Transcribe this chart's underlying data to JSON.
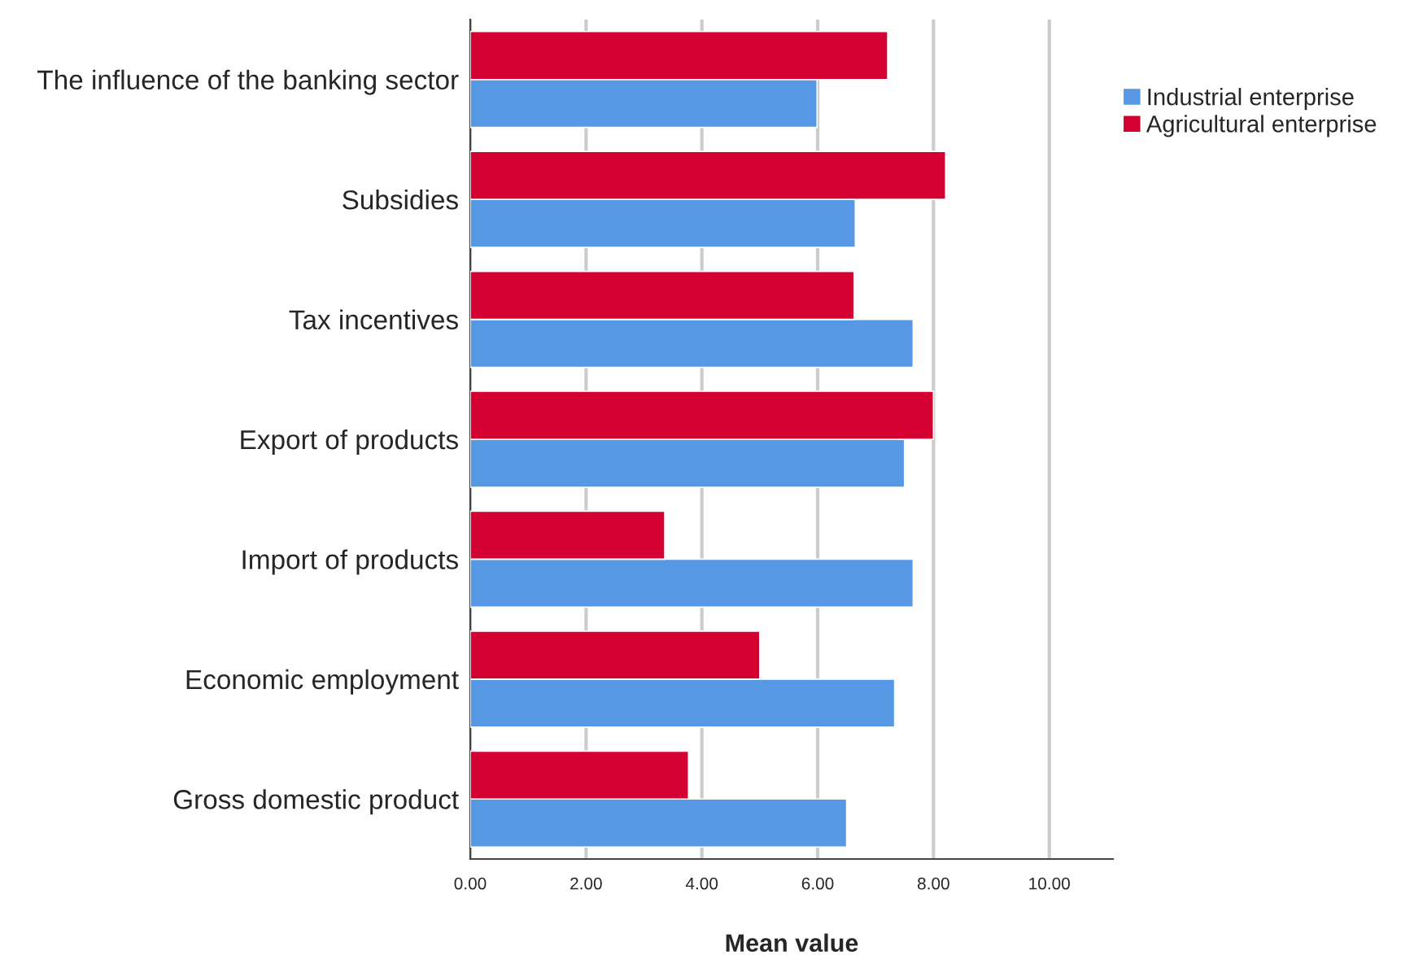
{
  "chart_data": {
    "type": "bar",
    "orientation": "horizontal",
    "xlabel": "Mean value",
    "categories": [
      "The influence of the banking sector",
      "Subsidies",
      "Tax incentives",
      "Export of products",
      "Import of products",
      "Economic employment",
      "Gross domestic product"
    ],
    "series": [
      {
        "name": "Industrial enterprise",
        "color": "#5698e3",
        "values": [
          5.99,
          6.65,
          7.65,
          7.5,
          7.65,
          7.33,
          6.5
        ]
      },
      {
        "name": "Agricultural enterprise",
        "color": "#d50032",
        "values": [
          7.21,
          8.21,
          6.63,
          8.0,
          3.36,
          5.0,
          3.77
        ]
      }
    ],
    "xlim": [
      0,
      11.1
    ],
    "xticks": [
      {
        "value": 0,
        "label": "0.00"
      },
      {
        "value": 2,
        "label": "2.00"
      },
      {
        "value": 4,
        "label": "4.00"
      },
      {
        "value": 6,
        "label": "6.00"
      },
      {
        "value": 8,
        "label": "8.00"
      },
      {
        "value": 10,
        "label": "10.00"
      }
    ],
    "grid": "x",
    "legend": "top right"
  }
}
